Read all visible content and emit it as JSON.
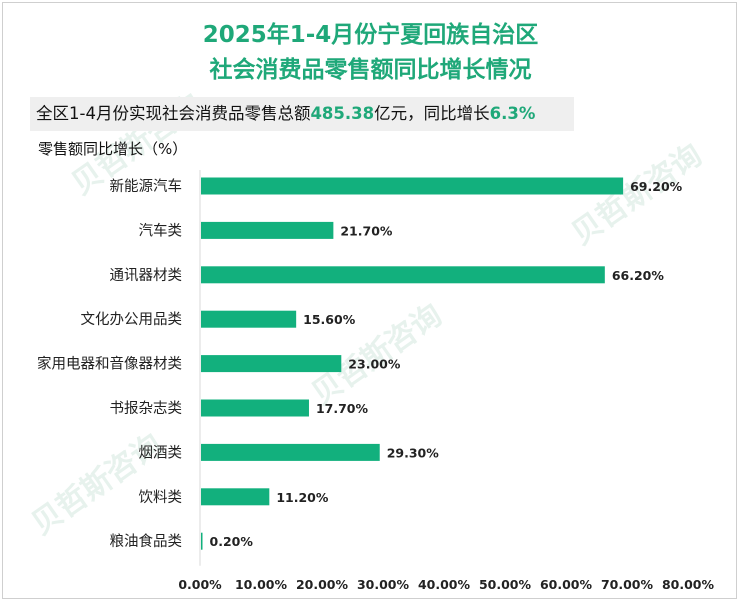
{
  "title_line1": "2025年1-4月份宁夏回族自治区",
  "title_line2": "社会消费品零售额同比增长情况",
  "summary": {
    "prefix": "全区1-4月份实现社会消费品零售总额",
    "total": "485.38",
    "middle": "亿元，同比增长",
    "growth": "6.3%"
  },
  "accent_color": "#1fa879",
  "bar_color": "#12b07d",
  "chart_data": {
    "type": "bar",
    "orientation": "horizontal",
    "ylabel": "零售额同比增长（%）",
    "categories": [
      "新能源汽车",
      "汽车类",
      "通讯器材类",
      "文化办公用品类",
      "家用电器和音像器材类",
      "书报杂志类",
      "烟酒类",
      "饮料类",
      "粮油食品类"
    ],
    "values": [
      69.2,
      21.7,
      66.2,
      15.6,
      23.0,
      17.7,
      29.3,
      11.2,
      0.2
    ],
    "value_labels": [
      "69.20%",
      "21.70%",
      "66.20%",
      "15.60%",
      "23.00%",
      "17.70%",
      "29.30%",
      "11.20%",
      "0.20%"
    ],
    "xlim": [
      0,
      80
    ],
    "x_ticks": [
      "0.00%",
      "10.00%",
      "20.00%",
      "30.00%",
      "40.00%",
      "50.00%",
      "60.00%",
      "70.00%",
      "80.00%"
    ],
    "grid": false
  }
}
